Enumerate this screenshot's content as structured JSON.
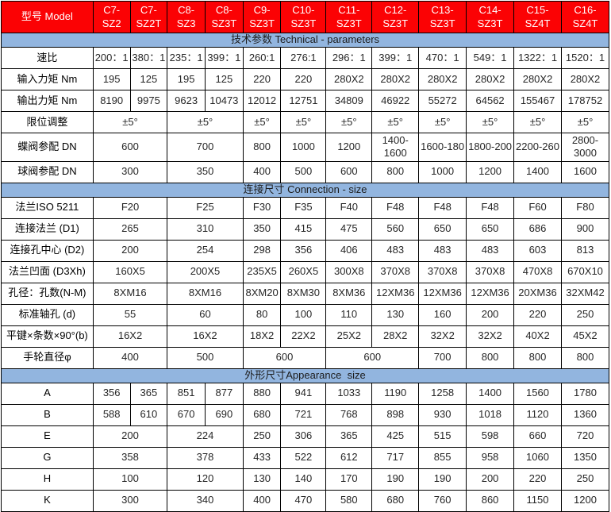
{
  "colors": {
    "header_bg": "#FB0204",
    "header_text": "#FFFFFF",
    "section_band_bg": "#92B5DF",
    "grid_border": "#000000",
    "cell_text": "#262626"
  },
  "table": {
    "header": {
      "label": "型号 Model",
      "models": [
        "C7-SZ2",
        "C7-SZ2T",
        "C8-SZ3",
        "C8-SZ3T",
        "C9-SZ3T",
        "C10-SZ3T",
        "C11-SZ3T",
        "C12-SZ3T",
        "C13-SZ3T",
        "C14-SZ3T",
        "C15-SZ4T",
        "C16-SZ4T"
      ]
    },
    "sections": [
      {
        "title": "技术参数 Technical - parameters",
        "rows": [
          {
            "label": "速比",
            "cells": [
              "200：1",
              "380：1",
              "235：1",
              "399：1",
              "260:1",
              "276:1",
              "296：1",
              "399：1",
              "470：1",
              "549：1",
              "1322：1",
              "1520：1"
            ]
          },
          {
            "label": "输入力矩 Nm",
            "cells": [
              "195",
              "125",
              "195",
              "125",
              "220",
              "220",
              "280X2",
              "280X2",
              "280X2",
              "280X2",
              "280X2",
              "280X2"
            ]
          },
          {
            "label": "输出力矩 Nm",
            "cells": [
              "8190",
              "9975",
              "9623",
              "10473",
              "12012",
              "12751",
              "34809",
              "46922",
              "55272",
              "64562",
              "155467",
              "178752"
            ]
          },
          {
            "label": "限位调整",
            "cells": [
              {
                "t": "±5°",
                "s": 2
              },
              {
                "t": "±5°",
                "s": 2
              },
              "±5°",
              "±5°",
              "±5°",
              "±5°",
              "±5°",
              "±5°",
              "±5°",
              "±5°"
            ]
          },
          {
            "label": "蝶阀参配 DN",
            "cells": [
              {
                "t": "600",
                "s": 2
              },
              {
                "t": "700",
                "s": 2
              },
              "800",
              "1000",
              "1200",
              "1400-1600",
              "1600-180",
              "1800-200",
              "2200-260",
              "2800-3000"
            ]
          },
          {
            "label": "球阀参配 DN",
            "cells": [
              {
                "t": "300",
                "s": 2
              },
              {
                "t": "350",
                "s": 2
              },
              "400",
              "500",
              "600",
              "800",
              "1000",
              "1200",
              "1400",
              "1600"
            ]
          }
        ]
      },
      {
        "title": "连接尺寸 Connection - size",
        "rows": [
          {
            "label": "法兰ISO 5211",
            "cells": [
              {
                "t": "F20",
                "s": 2
              },
              {
                "t": "F25",
                "s": 2
              },
              "F30",
              "F35",
              "F40",
              "F48",
              "F48",
              "F48",
              "F60",
              "F80"
            ]
          },
          {
            "label": "连接法兰 (D1)",
            "cells": [
              {
                "t": "265",
                "s": 2
              },
              {
                "t": "310",
                "s": 2
              },
              "350",
              "415",
              "475",
              "560",
              "650",
              "650",
              "686",
              "900"
            ]
          },
          {
            "label": "连接孔中心 (D2)",
            "cells": [
              {
                "t": "200",
                "s": 2
              },
              {
                "t": "254",
                "s": 2
              },
              "298",
              "356",
              "406",
              "483",
              "483",
              "483",
              "603",
              "813"
            ]
          },
          {
            "label": "法兰凹面 (D3Xh)",
            "cells": [
              {
                "t": "160X5",
                "s": 2
              },
              {
                "t": "200X5",
                "s": 2
              },
              "235X5",
              "260X5",
              "300X8",
              "370X8",
              "370X8",
              "370X8",
              "470X8",
              "670X10"
            ]
          },
          {
            "label": "孔径：孔数(N-M)",
            "cells": [
              {
                "t": "8XM16",
                "s": 2
              },
              {
                "t": "8XM16",
                "s": 2
              },
              "8XM20",
              "8XM30",
              "8XM36",
              "12XM36",
              "12XM36",
              "12XM36",
              "20XM36",
              "32XM42"
            ]
          },
          {
            "label": "标准轴孔 (d)",
            "cells": [
              {
                "t": "55",
                "s": 2
              },
              {
                "t": "60",
                "s": 2
              },
              "80",
              "100",
              "110",
              "130",
              "160",
              "200",
              "220",
              "250"
            ]
          },
          {
            "label": "平键×条数×90°(b)",
            "cells": [
              {
                "t": "16X2",
                "s": 2
              },
              {
                "t": "16X2",
                "s": 2
              },
              "18X2",
              "22X2",
              "25X2",
              "28X2",
              "32X2",
              "32X2",
              "40X2",
              "45X2"
            ]
          },
          {
            "label": "手轮直径φ",
            "cells": [
              {
                "t": "400",
                "s": 2
              },
              {
                "t": "500",
                "s": 2
              },
              {
                "t": "600",
                "s": 2
              },
              {
                "t": "600",
                "s": 2
              },
              "700",
              "800",
              "800",
              "800"
            ]
          }
        ]
      },
      {
        "title": "外形尺寸Appearance  size",
        "rows": [
          {
            "label": "A",
            "cells": [
              "356",
              "365",
              "851",
              "877",
              "880",
              "941",
              "1033",
              "1190",
              "1258",
              "1400",
              "1560",
              "1780"
            ]
          },
          {
            "label": "B",
            "cells": [
              "588",
              "610",
              "670",
              "690",
              "680",
              "721",
              "768",
              "898",
              "930",
              "1018",
              "1120",
              "1360"
            ]
          },
          {
            "label": "E",
            "cells": [
              {
                "t": "200",
                "s": 2
              },
              {
                "t": "224",
                "s": 2
              },
              "250",
              "306",
              "365",
              "425",
              "515",
              "598",
              "660",
              "720"
            ]
          },
          {
            "label": "G",
            "cells": [
              {
                "t": "358",
                "s": 2
              },
              {
                "t": "378",
                "s": 2
              },
              "433",
              "522",
              "612",
              "717",
              "855",
              "958",
              "1060",
              "1350"
            ]
          },
          {
            "label": "H",
            "cells": [
              {
                "t": "100",
                "s": 2
              },
              {
                "t": "120",
                "s": 2
              },
              "130",
              "140",
              "170",
              "190",
              "190",
              "200",
              "220",
              "250"
            ]
          },
          {
            "label": "K",
            "cells": [
              {
                "t": "300",
                "s": 2
              },
              {
                "t": "340",
                "s": 2
              },
              "400",
              "470",
              "580",
              "680",
              "760",
              "860",
              "1150",
              "1200"
            ]
          }
        ]
      }
    ]
  }
}
